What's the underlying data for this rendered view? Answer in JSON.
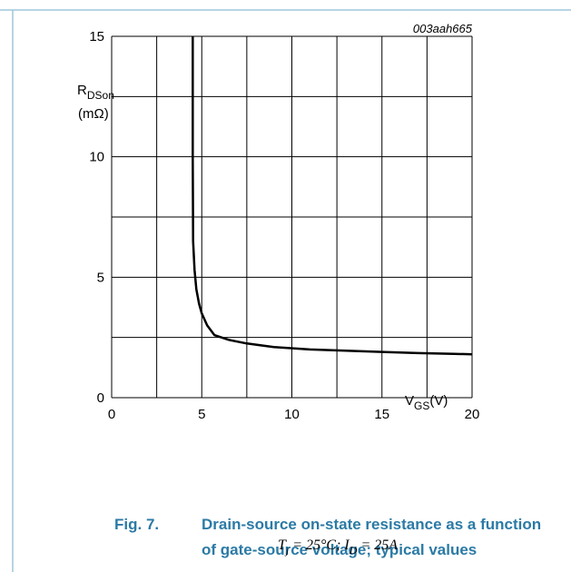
{
  "chart_data": {
    "type": "line",
    "annotation": "003aah665",
    "ylabel": [
      "R",
      "DSon"
    ],
    "yunit": "(mΩ)",
    "xlabel": [
      "V",
      "GS",
      "(V)"
    ],
    "xlim": [
      0,
      20
    ],
    "xticks": [
      0,
      5,
      10,
      15,
      20
    ],
    "xgrid": [
      0,
      2.5,
      5,
      7.5,
      10,
      12.5,
      15,
      17.5,
      20
    ],
    "ylim": [
      0,
      15
    ],
    "yticks": [
      0,
      5,
      10,
      15
    ],
    "ygrid": [
      0,
      2.5,
      5,
      7.5,
      10,
      12.5,
      15
    ],
    "grid": true,
    "x": [
      4.5,
      4.5,
      4.52,
      4.6,
      4.7,
      4.85,
      5,
      5.3,
      5.7,
      6.5,
      7.5,
      9,
      11,
      13,
      15,
      17,
      19,
      20
    ],
    "series": [
      {
        "color": "#000000",
        "values": [
          15,
          10,
          6.5,
          5.3,
          4.5,
          3.9,
          3.5,
          3.0,
          2.6,
          2.4,
          2.25,
          2.1,
          2.0,
          1.95,
          1.9,
          1.85,
          1.82,
          1.8
        ]
      }
    ],
    "caption_label": "Fig. 7.",
    "caption": [
      "Drain-source on-state resistance as a function",
      "of gate-source voltage; typical values"
    ],
    "conditions": [
      "T",
      "j",
      " = 25°C;  I",
      "D",
      " = 25A"
    ]
  }
}
